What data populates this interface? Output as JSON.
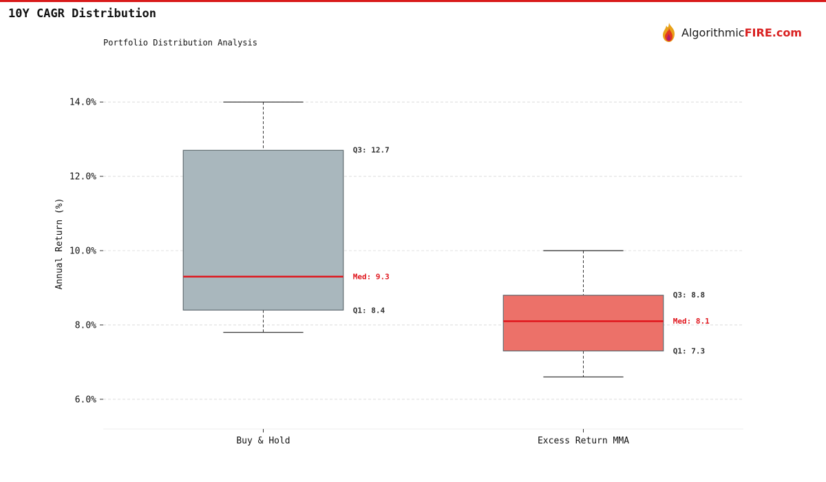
{
  "page": {
    "title": "10Y CAGR Distribution",
    "accent_color": "#d91a1a"
  },
  "logo": {
    "text_main": "Algorithmic",
    "text_accent": "FIRE",
    "text_suffix": ".com",
    "icon": "flame-icon",
    "accent_color": "#d92020"
  },
  "chart_data": {
    "type": "box",
    "subtitle": "Portfolio Distribution Analysis",
    "ylabel": "Annual Return (%)",
    "ylim": [
      5.2,
      14.8
    ],
    "yticks": [
      6.0,
      8.0,
      10.0,
      12.0,
      14.0
    ],
    "ytick_labels": [
      "6.0%",
      "8.0%",
      "10.0%",
      "12.0%",
      "14.0%"
    ],
    "grid": true,
    "categories": [
      "Buy & Hold",
      "Excess Return MMA"
    ],
    "series": [
      {
        "category": "Buy & Hold",
        "whisker_low": 7.8,
        "q1": 8.4,
        "median": 9.3,
        "q3": 12.7,
        "whisker_high": 14.0,
        "color": "#a9b7bd",
        "labels": {
          "q3": "Q3: 12.7",
          "median": "Med: 9.3",
          "q1": "Q1: 8.4"
        }
      },
      {
        "category": "Excess Return MMA",
        "whisker_low": 6.6,
        "q1": 7.3,
        "median": 8.1,
        "q3": 8.8,
        "whisker_high": 10.0,
        "color": "#ec7169",
        "labels": {
          "q3": "Q3: 8.8",
          "median": "Med: 8.1",
          "q1": "Q1: 7.3"
        }
      }
    ],
    "median_color": "#e0151c"
  }
}
